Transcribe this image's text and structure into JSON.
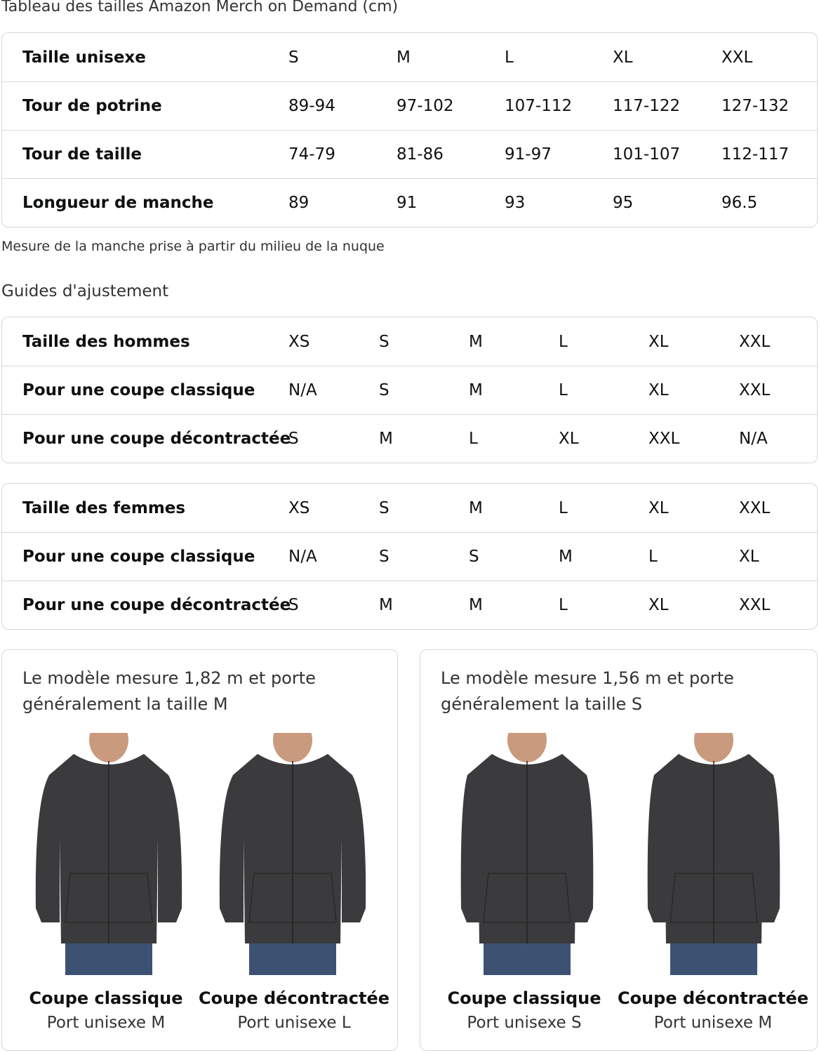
{
  "title": "Tableau des tailles Amazon Merch on Demand (cm)",
  "size_table": {
    "rows": [
      {
        "label": "Taille unisexe",
        "values": [
          "S",
          "M",
          "L",
          "XL",
          "XXL"
        ]
      },
      {
        "label": "Tour de potrine",
        "values": [
          "89-94",
          "97-102",
          "107-112",
          "117-122",
          "127-132"
        ]
      },
      {
        "label": "Tour de taille",
        "values": [
          "74-79",
          "81-86",
          "91-97",
          "101-107",
          "112-117"
        ]
      },
      {
        "label": "Longueur de manche",
        "values": [
          "89",
          "91",
          "93",
          "95",
          "96.5"
        ]
      }
    ]
  },
  "note": "Mesure de la manche prise à partir du milieu de la nuque",
  "fit_heading": "Guides d'ajustement",
  "men_table": {
    "rows": [
      {
        "label": "Taille des hommes",
        "values": [
          "XS",
          "S",
          "M",
          "L",
          "XL",
          "XXL"
        ]
      },
      {
        "label": "Pour une coupe classique",
        "values": [
          "N/A",
          "S",
          "M",
          "L",
          "XL",
          "XXL"
        ]
      },
      {
        "label": "Pour une coupe décontractée",
        "values": [
          "S",
          "M",
          "L",
          "XL",
          "XXL",
          "N/A"
        ]
      }
    ]
  },
  "women_table": {
    "rows": [
      {
        "label": "Taille des femmes",
        "values": [
          "XS",
          "S",
          "M",
          "L",
          "XL",
          "XXL"
        ]
      },
      {
        "label": "Pour une coupe classique",
        "values": [
          "N/A",
          "S",
          "S",
          "M",
          "L",
          "XL"
        ]
      },
      {
        "label": "Pour une coupe décontractée",
        "values": [
          "S",
          "M",
          "M",
          "L",
          "XL",
          "XXL"
        ]
      }
    ]
  },
  "cards": [
    {
      "description": "Le modèle mesure 1,82 m et porte généralement la taille M",
      "figures": [
        {
          "title": "Coupe classique",
          "subtitle": "Port unisexe M"
        },
        {
          "title": "Coupe décontractée",
          "subtitle": "Port unisexe L"
        }
      ]
    },
    {
      "description": "Le modèle mesure 1,56 m et porte généralement la taille S",
      "figures": [
        {
          "title": "Coupe classique",
          "subtitle": "Port unisexe S"
        },
        {
          "title": "Coupe décontractée",
          "subtitle": "Port unisexe M"
        }
      ]
    }
  ],
  "colors": {
    "hoodie": "#3b3b3d",
    "jeans": "#3d5273",
    "border": "#d5d9d9"
  }
}
